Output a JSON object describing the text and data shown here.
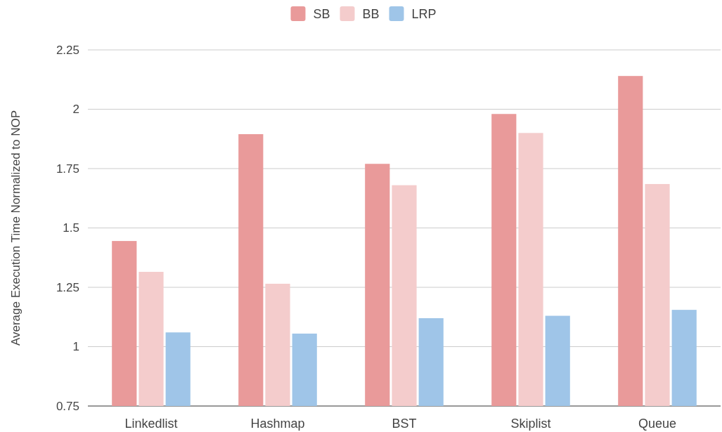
{
  "chart_data": {
    "type": "bar",
    "ylabel": "Average Execution Time Normalized to NOP",
    "categories": [
      "Linkedlist",
      "Hashmap",
      "BST",
      "Skiplist",
      "Queue"
    ],
    "series": [
      {
        "name": "SB",
        "color": "#e99a9a",
        "values": [
          1.445,
          1.895,
          1.77,
          1.98,
          2.14
        ]
      },
      {
        "name": "BB",
        "color": "#f4cccc",
        "values": [
          1.315,
          1.265,
          1.68,
          1.9,
          1.685
        ]
      },
      {
        "name": "LRP",
        "color": "#9fc5e8",
        "values": [
          1.06,
          1.055,
          1.12,
          1.13,
          1.155
        ]
      }
    ],
    "ylim": [
      0.75,
      2.25
    ],
    "yticks": [
      0.75,
      1,
      1.25,
      1.5,
      1.75,
      2,
      2.25
    ],
    "grid": "y",
    "legend": "top"
  }
}
